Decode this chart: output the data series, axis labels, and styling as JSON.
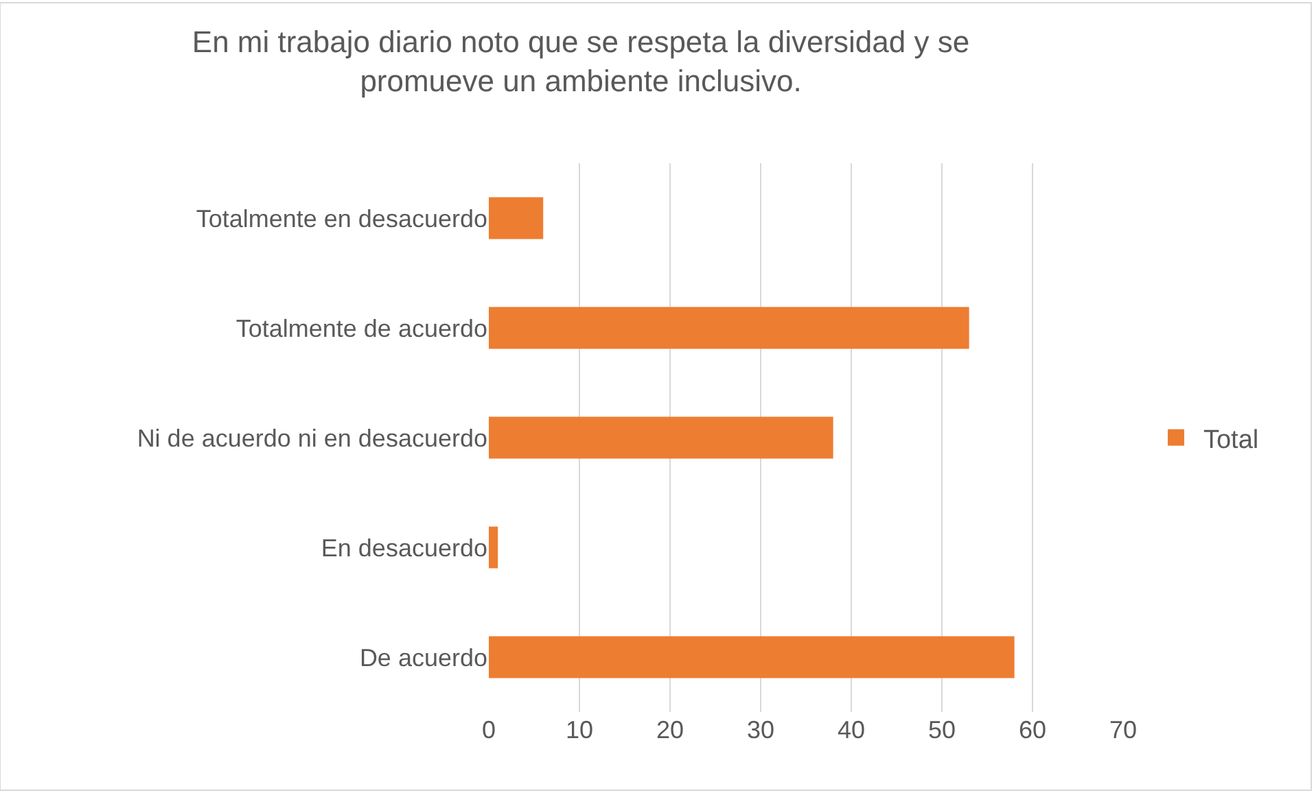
{
  "chart_data": {
    "type": "bar",
    "orientation": "horizontal",
    "title": "En mi trabajo diario noto que se respeta la diversidad y se promueve un ambiente inclusivo.",
    "categories": [
      "Totalmente en desacuerdo",
      "Totalmente de acuerdo",
      "Ni de acuerdo ni en desacuerdo",
      "En desacuerdo",
      "De acuerdo"
    ],
    "series": [
      {
        "name": "Total",
        "color": "#ed7d31",
        "values": [
          6,
          53,
          38,
          1,
          58
        ]
      }
    ],
    "xlim": [
      0,
      70
    ],
    "xticks": [
      0,
      10,
      20,
      30,
      40,
      50,
      60,
      70
    ],
    "grid": "x",
    "legend": "right"
  }
}
